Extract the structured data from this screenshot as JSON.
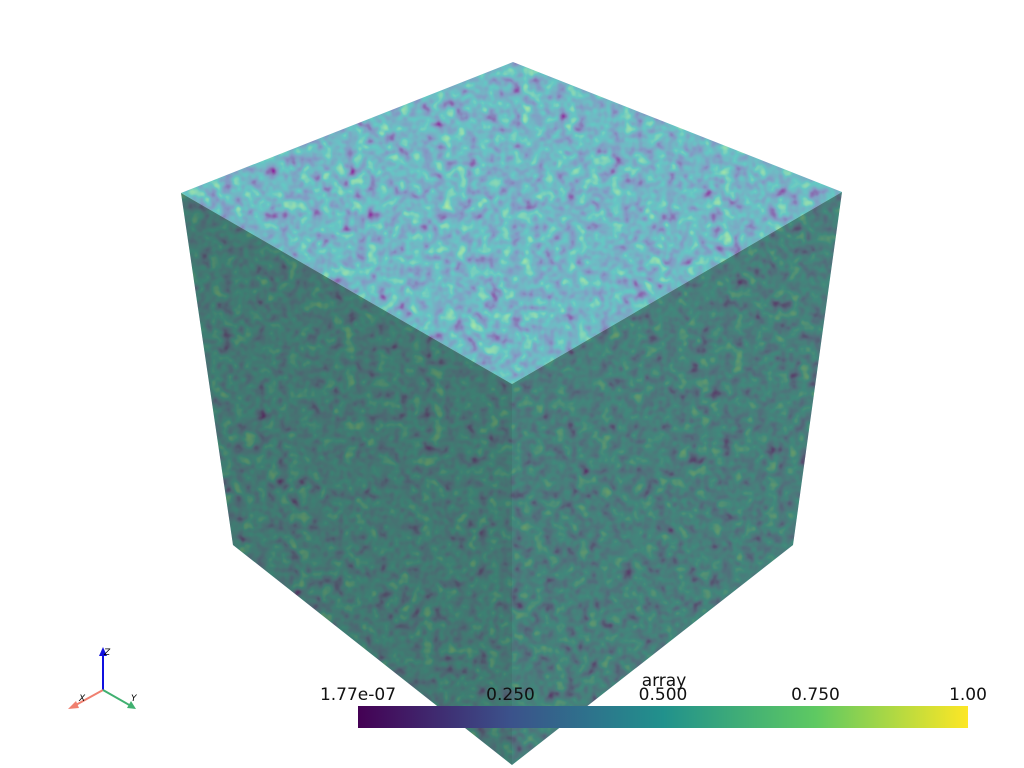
{
  "colorbar": {
    "title": "array",
    "range": [
      1.77e-07,
      1.0
    ],
    "ticks": [
      {
        "value": 1.77e-07,
        "label": "1.77e-07"
      },
      {
        "value": 0.25,
        "label": "0.250"
      },
      {
        "value": 0.5,
        "label": "0.500"
      },
      {
        "value": 0.75,
        "label": "0.750"
      },
      {
        "value": 1.0,
        "label": "1.00"
      }
    ]
  },
  "axes_widget": {
    "x": "X",
    "y": "Y",
    "z": "Z"
  }
}
